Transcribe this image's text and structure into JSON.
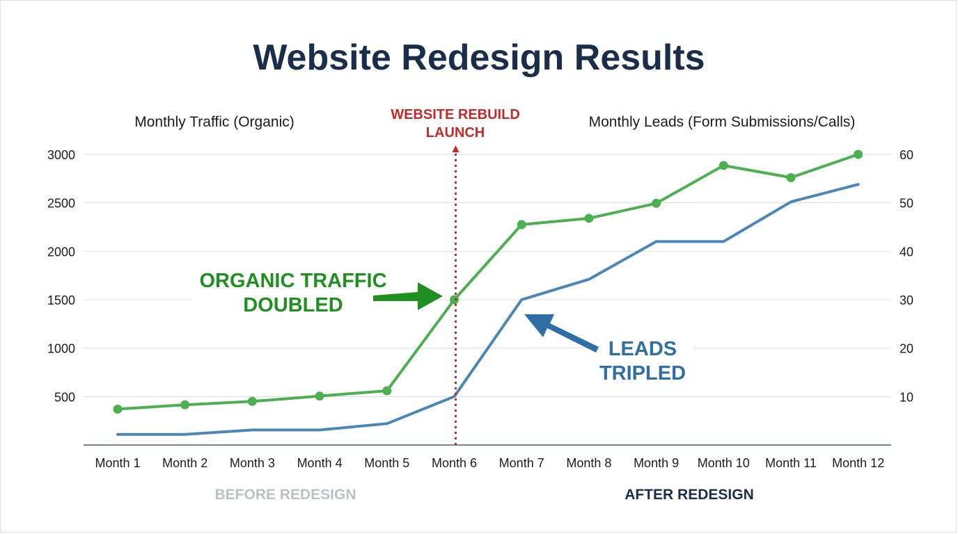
{
  "chart_data": {
    "type": "line",
    "title": "Website Redesign Results",
    "categories": [
      "Month 1",
      "Month 2",
      "Month 3",
      "Month 4",
      "Month 5",
      "Month 6",
      "Month 7",
      "Month 8",
      "Month 9",
      "Month 10",
      "Month 11",
      "Month 12"
    ],
    "left_axis": {
      "label": "Monthly Traffic (Organic)",
      "ticks": [
        500,
        1000,
        1500,
        2000,
        2500,
        3000
      ],
      "ylim": [
        0,
        3000
      ]
    },
    "right_axis": {
      "label": "Monthly Leads (Form Submissions/Calls)",
      "ticks": [
        10,
        20,
        30,
        40,
        50,
        60
      ],
      "ylim": [
        0,
        60
      ]
    },
    "grid": true,
    "series": [
      {
        "key": "traffic",
        "axis": "left",
        "color": "#4caf50",
        "markers": true,
        "values": [
          370,
          415,
          450,
          505,
          560,
          1500,
          2275,
          2340,
          2495,
          2885,
          2760,
          3000
        ]
      },
      {
        "key": "leads",
        "axis": "right",
        "color": "#4a86b8",
        "markers": false,
        "values": [
          2.2,
          2.2,
          3.1,
          3.1,
          4.4,
          10,
          30,
          34.2,
          42,
          42,
          50.2,
          53.8
        ]
      }
    ],
    "annotations": {
      "launch": {
        "line1": "WEBSITE REBUILD",
        "line2": "LAUNCH",
        "month_index": 5,
        "color": "#c62828"
      },
      "traffic": {
        "line1": "ORGANIC TRAFFIC",
        "line2": "DOUBLED",
        "color": "#1f8f1f"
      },
      "leads": {
        "line1": "LEADS",
        "line2": "TRIPLED",
        "color": "#2f6fa5"
      },
      "before": {
        "text": "BEFORE REDESIGN",
        "color": "#b9c0c8"
      },
      "after": {
        "text": "AFTER REDESIGN",
        "color": "#1a2e4a"
      }
    },
    "colors": {
      "title": "#1a2e4a",
      "grid": "#dddddd",
      "axis": "#7b8794"
    }
  }
}
